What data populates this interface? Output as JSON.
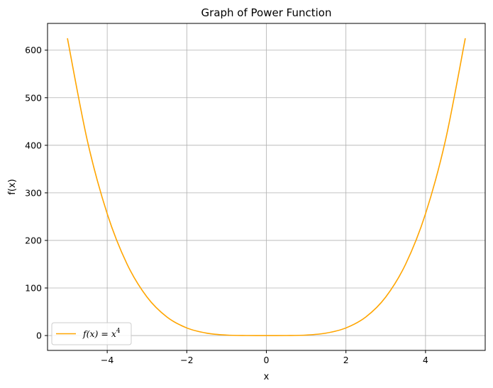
{
  "chart_data": {
    "type": "line",
    "title": "Graph of Power Function",
    "xlabel": "x",
    "ylabel": "f(x)",
    "xlim": [
      -5.5,
      5.5
    ],
    "ylim": [
      -31.25,
      656.25
    ],
    "xticks": [
      -4,
      -2,
      0,
      2,
      4
    ],
    "xtick_labels": [
      "−4",
      "−2",
      "0",
      "2",
      "4"
    ],
    "yticks": [
      0,
      100,
      200,
      300,
      400,
      500,
      600
    ],
    "ytick_labels": [
      "0",
      "100",
      "200",
      "300",
      "400",
      "500",
      "600"
    ],
    "grid": true,
    "legend_position": "lower-left",
    "series": [
      {
        "name": "f(x) = x4",
        "legend": {
          "main": "f(x) = x",
          "sup": "4"
        },
        "color": "#ffa500",
        "x": [
          -5.0,
          -4.5,
          -4.0,
          -3.5,
          -3.0,
          -2.5,
          -2.0,
          -1.5,
          -1.0,
          -0.5,
          0.0,
          0.5,
          1.0,
          1.5,
          2.0,
          2.5,
          3.0,
          3.5,
          4.0,
          4.5,
          5.0
        ],
        "y": [
          625,
          410.06,
          256,
          150.06,
          81,
          39.06,
          16,
          5.06,
          1,
          0.06,
          0,
          0.06,
          1,
          5.06,
          16,
          39.06,
          81,
          150.06,
          256,
          410.06,
          625
        ]
      }
    ]
  }
}
